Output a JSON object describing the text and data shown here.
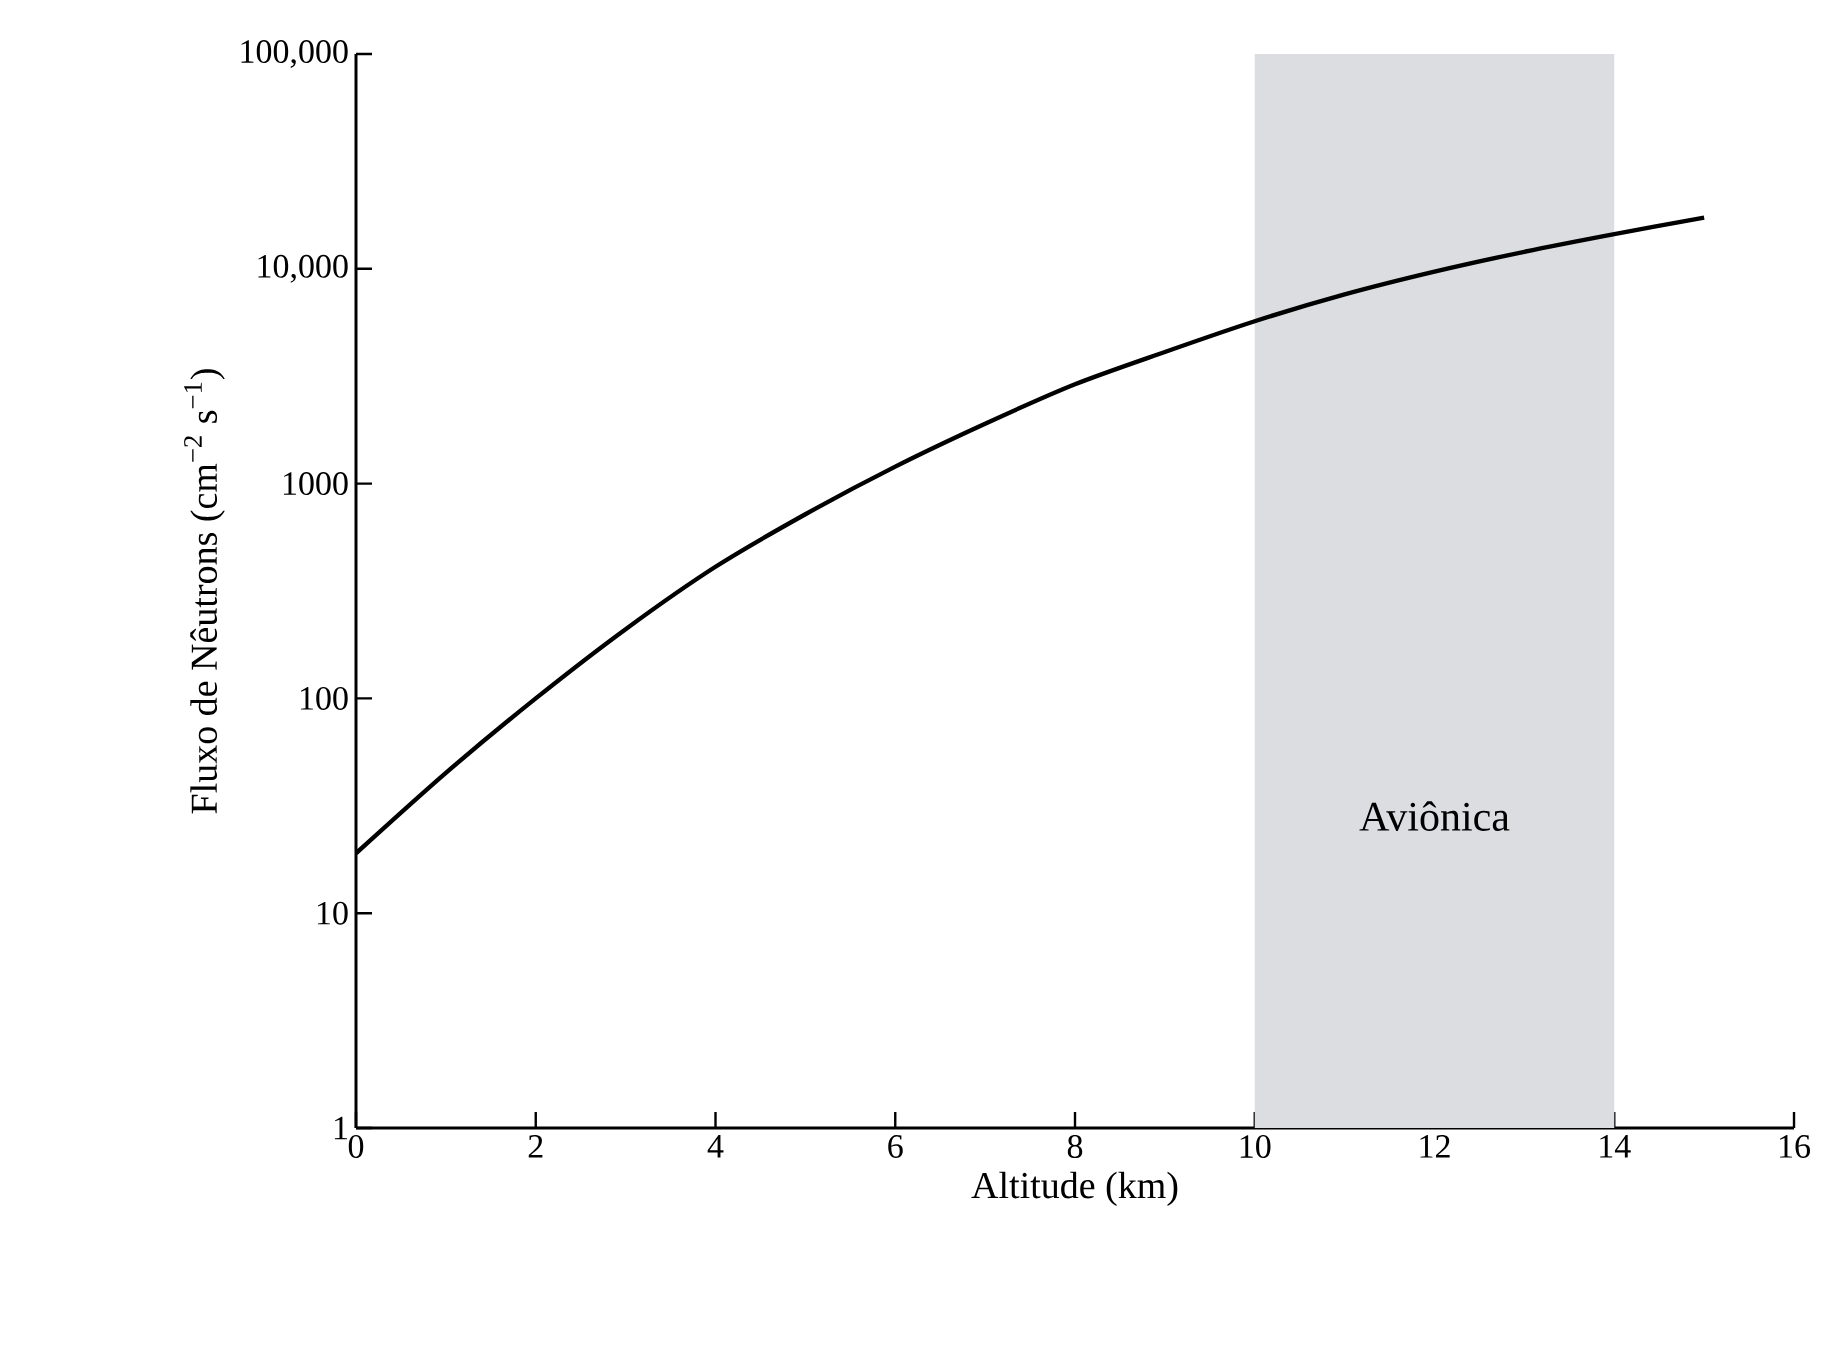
{
  "chart_data": {
    "type": "line",
    "xlabel": "Altitude (km)",
    "ylabel": "Fluxo de Nêutrons (cm$^{−2}$ s$^{−1}$)",
    "x": [
      0,
      1,
      2,
      3,
      4,
      5,
      6,
      7,
      8,
      9,
      10,
      11,
      12,
      13,
      14,
      15
    ],
    "series": [
      {
        "color": "#000000",
        "values": [
          19,
          45,
          100,
          210,
          410,
          720,
          1200,
          1900,
          2900,
          4100,
          5700,
          7600,
          9700,
          12000,
          14500,
          17300
        ]
      }
    ],
    "xlim": [
      0,
      16
    ],
    "xticks": [
      0,
      2,
      4,
      6,
      8,
      10,
      12,
      14,
      16
    ],
    "ylim": [
      1,
      100000
    ],
    "log": "y",
    "yticks": [
      1,
      10,
      100,
      1000,
      {
        "value": 10000,
        "label": "10,000"
      },
      {
        "value": 100000,
        "label": "100,000"
      }
    ],
    "bands": [
      {
        "axis": "x",
        "from": 10,
        "to": 14,
        "label": "Aviônica",
        "color": "#dcdde0"
      }
    ],
    "marker": "none",
    "line_style": "solid"
  }
}
